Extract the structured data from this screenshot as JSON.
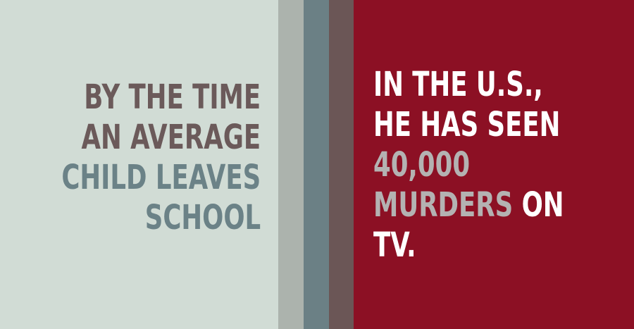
{
  "colors": {
    "left_background": "#d1dcd5",
    "stripe_light": "#acb3ad",
    "stripe_slate": "#6b8085",
    "stripe_brown": "#6b5656",
    "right_background": "#8c1024",
    "text_dark": "#6b5a5a",
    "text_slate": "#6b8287",
    "text_white": "#ffffff",
    "text_gray": "#b4b2b2"
  },
  "left_text": {
    "line1": "BY THE TIME",
    "line2": "AN AVERAGE",
    "line3": "CHILD LEAVES",
    "line4": "SCHOOL"
  },
  "right_text": {
    "line1": "IN THE U.S.,",
    "line2": "HE HAS SEEN",
    "line3": "40,000",
    "line4_highlight": "MURDERS",
    "line4_rest": " ON",
    "line5": "TV."
  }
}
